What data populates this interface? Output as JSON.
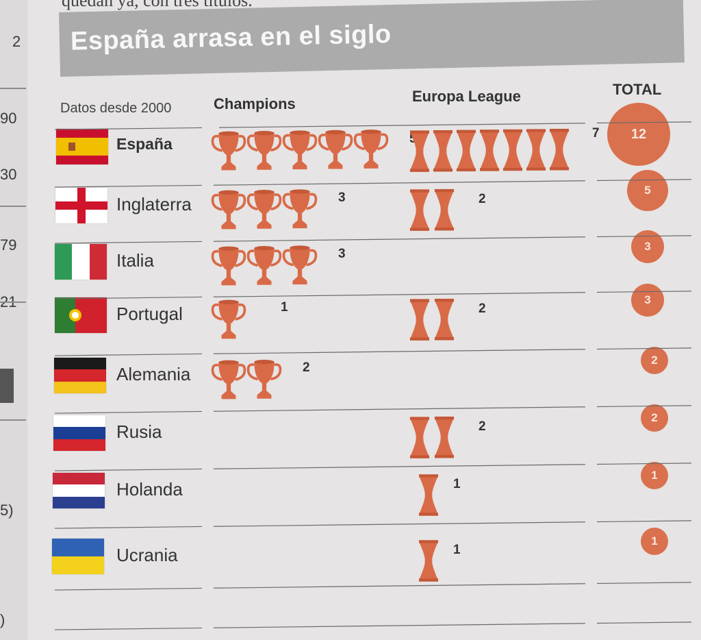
{
  "colors": {
    "trophy": "#d96a47",
    "trophy_dark": "#c45837",
    "total": "#d9704e",
    "title_bg": "#ababab"
  },
  "margin_numbers": [
    "2",
    "90",
    "30",
    "79",
    "21",
    "5)",
    ")"
  ],
  "page_top_text": "quedan ya, con tres títulos.",
  "chart_data": {
    "type": "table",
    "title": "España arrasa en el siglo",
    "subtitle": "Datos desde 2000",
    "columns": [
      "Champions",
      "Europa League",
      "TOTAL"
    ],
    "rows": [
      {
        "country": "España",
        "flag": "spain",
        "champions": 5,
        "europa": 7,
        "total": 12,
        "bold": true
      },
      {
        "country": "Inglaterra",
        "flag": "england",
        "champions": 3,
        "europa": 2,
        "total": 5
      },
      {
        "country": "Italia",
        "flag": "italy",
        "champions": 3,
        "europa": 0,
        "total": 3
      },
      {
        "country": "Portugal",
        "flag": "portugal",
        "champions": 1,
        "europa": 2,
        "total": 3
      },
      {
        "country": "Alemania",
        "flag": "germany",
        "champions": 2,
        "europa": 0,
        "total": 2
      },
      {
        "country": "Rusia",
        "flag": "russia",
        "champions": 0,
        "europa": 2,
        "total": 2
      },
      {
        "country": "Holanda",
        "flag": "netherlands",
        "champions": 0,
        "europa": 1,
        "total": 1
      },
      {
        "country": "Ucrania",
        "flag": "ukraine",
        "champions": 0,
        "europa": 1,
        "total": 1
      }
    ]
  }
}
